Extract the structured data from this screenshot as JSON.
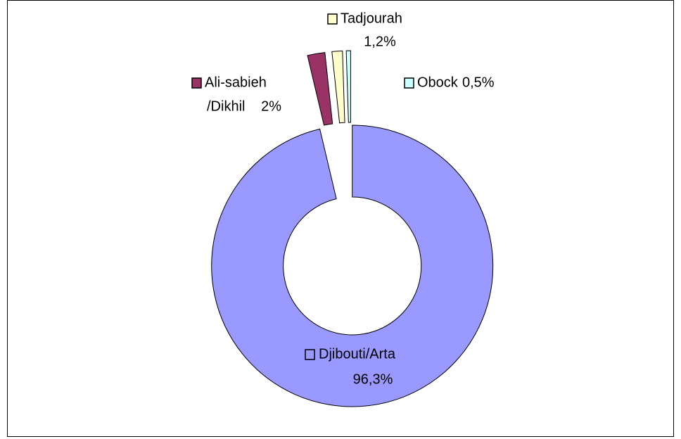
{
  "chart_data": {
    "type": "donut",
    "categories": [
      "Djibouti/Arta",
      "Ali-sabieh /Dikhil",
      "Tadjourah",
      "Obock"
    ],
    "values": [
      96.3,
      2,
      1.2,
      0.5
    ],
    "value_labels": [
      "96,3%",
      "2%",
      "1,2%",
      "0,5%"
    ],
    "colors": [
      "#9999ff",
      "#993366",
      "#ffffcc",
      "#ccffff"
    ]
  }
}
